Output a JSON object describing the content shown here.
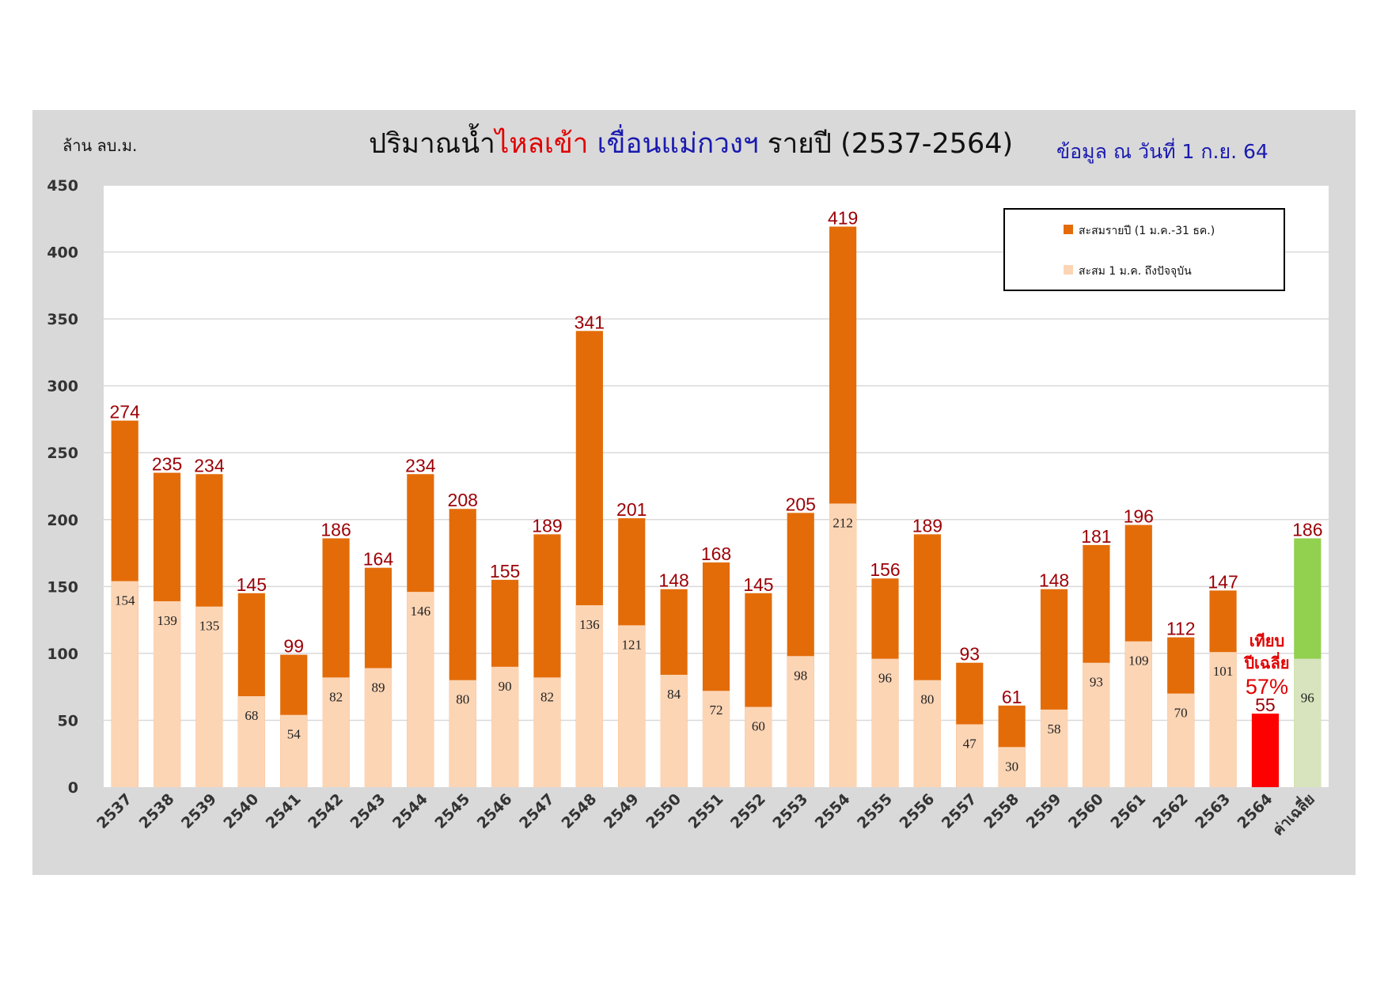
{
  "chart_data": {
    "type": "bar",
    "title_parts": [
      {
        "text": "ปริมาณน้ำ",
        "color": "#111111"
      },
      {
        "text": "ไหลเข้า",
        "color": "#e10000"
      },
      {
        "text": " เขื่อนแม่กวงฯ",
        "color": "#1a1ab0"
      },
      {
        "text": " รายปี  (2537-2564)",
        "color": "#111111"
      }
    ],
    "subtitle": "ข้อมูล ณ วันที่ 1 ก.ย. 64",
    "ylabel": "ล้าน ลบ.ม.",
    "ylim": [
      0,
      450
    ],
    "yticks": [
      0,
      50,
      100,
      150,
      200,
      250,
      300,
      350,
      400,
      450
    ],
    "grid": true,
    "legend_position": "top-right",
    "categories": [
      "2537",
      "2538",
      "2539",
      "2540",
      "2541",
      "2542",
      "2543",
      "2544",
      "2545",
      "2546",
      "2547",
      "2548",
      "2549",
      "2550",
      "2551",
      "2552",
      "2553",
      "2554",
      "2555",
      "2556",
      "2557",
      "2558",
      "2559",
      "2560",
      "2561",
      "2562",
      "2563",
      "2564",
      "ค่าเฉลี่ย"
    ],
    "series": [
      {
        "name": "สะสมรายปี (1 ม.ค.-31 ธค.)",
        "color": "#e36c09",
        "values": [
          274,
          235,
          234,
          145,
          99,
          186,
          164,
          234,
          208,
          155,
          189,
          341,
          201,
          148,
          168,
          145,
          205,
          419,
          156,
          189,
          93,
          61,
          148,
          181,
          196,
          112,
          147,
          null,
          186
        ],
        "average_color": "#92d050",
        "average_label_color": "#00a050"
      },
      {
        "name": "สะสม 1 ม.ค. ถึงปัจจุบัน",
        "color": "#fcd5b5",
        "values": [
          154,
          139,
          135,
          68,
          54,
          82,
          89,
          146,
          80,
          90,
          82,
          136,
          121,
          84,
          72,
          60,
          98,
          212,
          96,
          80,
          47,
          30,
          58,
          93,
          109,
          70,
          101,
          55,
          96
        ],
        "current_color": "#ff0000",
        "average_color": "#d7e4bd",
        "average_label_color": "#00a050"
      }
    ],
    "annotation": {
      "lines": [
        "เทียบ",
        "ปีเฉลี่ย"
      ],
      "value": "57%",
      "color": "#e10000"
    }
  }
}
